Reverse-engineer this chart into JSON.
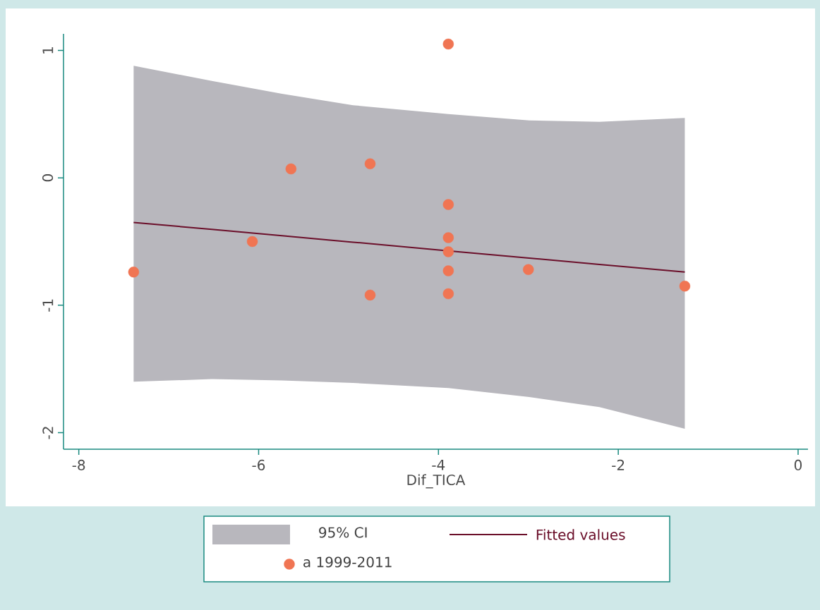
{
  "chart_data": {
    "type": "scatter",
    "xlabel": "Dif_TICA",
    "xlim": [
      -8.17,
      0.11
    ],
    "ylim": [
      -2.13,
      1.13
    ],
    "xticks": [
      -8,
      -6,
      -4,
      -2,
      0
    ],
    "yticks": [
      -2,
      -1,
      0,
      1
    ],
    "grid": false,
    "legend": "bottom",
    "annotations": [
      "95% CI"
    ],
    "series": [
      {
        "name": "Fitted values",
        "type": "line",
        "color": "#6b0f2a",
        "x": [
          -7.39,
          -6.52,
          -5.74,
          -4.95,
          -3.89,
          -2.99,
          -2.21,
          -1.26
        ],
        "values": [
          -0.35,
          -0.405,
          -0.455,
          -0.505,
          -0.573,
          -0.63,
          -0.68,
          -0.74
        ],
        "lower": [
          -1.6,
          -1.58,
          -1.59,
          -1.61,
          -1.65,
          -1.72,
          -1.8,
          -1.97
        ],
        "upper": [
          0.88,
          0.76,
          0.66,
          0.57,
          0.5,
          0.45,
          0.44,
          0.47
        ]
      },
      {
        "name": "a 1999-2011",
        "color": "#f07553",
        "marker": "circle",
        "x": [
          -7.39,
          -6.07,
          -5.64,
          -4.76,
          -4.76,
          -3.89,
          -3.89,
          -3.89,
          -3.89,
          -3.89,
          -3.89,
          -3.0,
          -1.26
        ],
        "values": [
          -0.74,
          -0.5,
          0.07,
          0.11,
          -0.92,
          1.05,
          -0.21,
          -0.47,
          -0.58,
          -0.73,
          -0.91,
          -0.72,
          -0.85
        ]
      }
    ]
  }
}
